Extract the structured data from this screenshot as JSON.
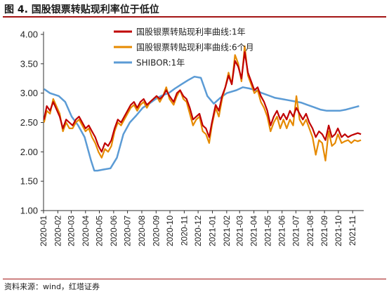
{
  "figure": {
    "title": "图 4. 国股银票转贴现利率位于低位",
    "source": "资料来源：wind，红塔证券"
  },
  "colors": {
    "series_1y": "#c00000",
    "series_6m": "#e68a00",
    "series_shibor": "#5b9bd5",
    "axis": "#333333",
    "accent": "#a31515"
  },
  "chart_data": {
    "type": "line",
    "title": "图 4. 国股银票转贴现利率位于低位",
    "xlabel": "",
    "ylabel": "",
    "ylim": [
      1.0,
      4.0
    ],
    "yticks": [
      "1.00",
      "1.50",
      "2.00",
      "2.50",
      "3.00",
      "3.50",
      "4.00"
    ],
    "xticks": [
      "2020-01",
      "2020-02",
      "2020-03",
      "2020-04",
      "2020-05",
      "2020-06",
      "2020-07",
      "2020-08",
      "2020-09",
      "2020-10",
      "2020-11",
      "2020-12",
      "2021-01",
      "2021-02",
      "2021-03",
      "2021-04",
      "2021-05",
      "2021-06",
      "2021-07",
      "2021-08",
      "2021-09",
      "2021-10",
      "2021-11"
    ],
    "grid": false,
    "legend_position": "top-right",
    "series": [
      {
        "name": "国股银票转贴现利率曲线:1年",
        "color": "#c00000",
        "x": [
          "2020-01-02",
          "2020-01-08",
          "2020-01-15",
          "2020-01-22",
          "2020-02-05",
          "2020-02-12",
          "2020-02-19",
          "2020-02-26",
          "2020-03-04",
          "2020-03-11",
          "2020-03-18",
          "2020-03-25",
          "2020-04-01",
          "2020-04-08",
          "2020-04-15",
          "2020-04-22",
          "2020-04-29",
          "2020-05-06",
          "2020-05-13",
          "2020-05-20",
          "2020-05-27",
          "2020-06-03",
          "2020-06-10",
          "2020-06-17",
          "2020-06-24",
          "2020-07-01",
          "2020-07-08",
          "2020-07-15",
          "2020-07-22",
          "2020-07-29",
          "2020-08-05",
          "2020-08-12",
          "2020-08-19",
          "2020-08-26",
          "2020-09-02",
          "2020-09-09",
          "2020-09-16",
          "2020-09-23",
          "2020-09-30",
          "2020-10-09",
          "2020-10-16",
          "2020-10-23",
          "2020-10-30",
          "2020-11-06",
          "2020-11-13",
          "2020-11-20",
          "2020-11-27",
          "2020-12-04",
          "2020-12-11",
          "2020-12-18",
          "2020-12-25",
          "2020-12-31",
          "2021-01-08",
          "2021-01-15",
          "2021-01-22",
          "2021-01-29",
          "2021-02-05",
          "2021-02-12",
          "2021-02-19",
          "2021-02-26",
          "2021-03-05",
          "2021-03-12",
          "2021-03-19",
          "2021-03-26",
          "2021-04-02",
          "2021-04-09",
          "2021-04-16",
          "2021-04-23",
          "2021-04-30",
          "2021-05-07",
          "2021-05-14",
          "2021-05-21",
          "2021-05-28",
          "2021-06-04",
          "2021-06-11",
          "2021-06-18",
          "2021-06-25",
          "2021-07-02",
          "2021-07-09",
          "2021-07-16",
          "2021-07-23",
          "2021-07-30",
          "2021-08-06",
          "2021-08-13",
          "2021-08-20",
          "2021-08-27",
          "2021-09-03",
          "2021-09-10",
          "2021-09-17",
          "2021-09-24",
          "2021-09-30",
          "2021-10-08",
          "2021-10-15",
          "2021-10-22",
          "2021-10-29",
          "2021-11-05",
          "2021-11-12",
          "2021-11-19"
        ],
        "y": [
          2.55,
          2.78,
          2.7,
          2.85,
          2.6,
          2.4,
          2.55,
          2.5,
          2.45,
          2.55,
          2.6,
          2.5,
          2.4,
          2.45,
          2.35,
          2.25,
          2.1,
          2.0,
          2.15,
          2.1,
          2.2,
          2.4,
          2.55,
          2.5,
          2.6,
          2.7,
          2.8,
          2.85,
          2.75,
          2.85,
          2.9,
          2.8,
          2.85,
          2.9,
          2.95,
          2.9,
          2.95,
          3.05,
          2.95,
          2.85,
          3.0,
          3.05,
          2.95,
          2.9,
          2.75,
          2.55,
          2.6,
          2.65,
          2.45,
          2.4,
          2.25,
          2.5,
          2.8,
          2.7,
          2.95,
          3.1,
          3.3,
          3.15,
          3.55,
          3.45,
          3.25,
          3.7,
          3.35,
          3.2,
          3.05,
          3.1,
          2.95,
          2.85,
          2.7,
          2.45,
          2.6,
          2.7,
          2.55,
          2.65,
          2.55,
          2.7,
          2.6,
          2.75,
          2.65,
          2.55,
          2.65,
          2.5,
          2.4,
          2.25,
          2.35,
          2.3,
          2.2,
          2.45,
          2.25,
          2.3,
          2.4,
          2.25,
          2.3,
          2.25,
          2.28,
          2.3,
          2.32,
          2.3
        ]
      },
      {
        "name": "国股银票转贴现利率曲线:6个月",
        "color": "#e68a00",
        "x": [
          "2020-01-02",
          "2020-01-08",
          "2020-01-15",
          "2020-01-22",
          "2020-02-05",
          "2020-02-12",
          "2020-02-19",
          "2020-02-26",
          "2020-03-04",
          "2020-03-11",
          "2020-03-18",
          "2020-03-25",
          "2020-04-01",
          "2020-04-08",
          "2020-04-15",
          "2020-04-22",
          "2020-04-29",
          "2020-05-06",
          "2020-05-13",
          "2020-05-20",
          "2020-05-27",
          "2020-06-03",
          "2020-06-10",
          "2020-06-17",
          "2020-06-24",
          "2020-07-01",
          "2020-07-08",
          "2020-07-15",
          "2020-07-22",
          "2020-07-29",
          "2020-08-05",
          "2020-08-12",
          "2020-08-19",
          "2020-08-26",
          "2020-09-02",
          "2020-09-09",
          "2020-09-16",
          "2020-09-23",
          "2020-09-30",
          "2020-10-09",
          "2020-10-16",
          "2020-10-23",
          "2020-10-30",
          "2020-11-06",
          "2020-11-13",
          "2020-11-20",
          "2020-11-27",
          "2020-12-04",
          "2020-12-11",
          "2020-12-18",
          "2020-12-25",
          "2020-12-31",
          "2021-01-08",
          "2021-01-15",
          "2021-01-22",
          "2021-01-29",
          "2021-02-05",
          "2021-02-12",
          "2021-02-19",
          "2021-02-26",
          "2021-03-05",
          "2021-03-12",
          "2021-03-19",
          "2021-03-26",
          "2021-04-02",
          "2021-04-09",
          "2021-04-16",
          "2021-04-23",
          "2021-04-30",
          "2021-05-07",
          "2021-05-14",
          "2021-05-21",
          "2021-05-28",
          "2021-06-04",
          "2021-06-11",
          "2021-06-18",
          "2021-06-25",
          "2021-07-02",
          "2021-07-09",
          "2021-07-16",
          "2021-07-23",
          "2021-07-30",
          "2021-08-06",
          "2021-08-13",
          "2021-08-20",
          "2021-08-27",
          "2021-09-03",
          "2021-09-10",
          "2021-09-17",
          "2021-09-24",
          "2021-09-30",
          "2021-10-08",
          "2021-10-15",
          "2021-10-22",
          "2021-10-29",
          "2021-11-05",
          "2021-11-12",
          "2021-11-19"
        ],
        "y": [
          2.5,
          2.7,
          2.65,
          2.9,
          2.65,
          2.35,
          2.5,
          2.4,
          2.4,
          2.5,
          2.55,
          2.45,
          2.35,
          2.4,
          2.25,
          2.15,
          2.0,
          1.9,
          2.05,
          2.0,
          2.1,
          2.35,
          2.5,
          2.45,
          2.55,
          2.65,
          2.75,
          2.8,
          2.7,
          2.8,
          2.85,
          2.75,
          2.85,
          2.9,
          2.95,
          2.85,
          2.95,
          3.1,
          2.9,
          2.8,
          2.95,
          3.05,
          2.9,
          2.85,
          2.65,
          2.45,
          2.55,
          2.6,
          2.35,
          2.3,
          2.15,
          2.45,
          2.75,
          2.6,
          2.9,
          3.1,
          3.35,
          3.15,
          3.65,
          3.5,
          3.2,
          3.8,
          3.3,
          3.15,
          3.0,
          3.05,
          2.85,
          2.75,
          2.6,
          2.35,
          2.5,
          2.6,
          2.4,
          2.55,
          2.4,
          2.55,
          2.45,
          2.95,
          2.55,
          2.45,
          2.55,
          2.4,
          2.25,
          1.95,
          2.2,
          2.15,
          1.85,
          2.35,
          2.1,
          2.15,
          2.3,
          2.15,
          2.18,
          2.2,
          2.15,
          2.2,
          2.18,
          2.2
        ]
      },
      {
        "name": "SHIBOR:1年",
        "color": "#5b9bd5",
        "x": [
          "2020-01-02",
          "2020-01-15",
          "2020-02-03",
          "2020-02-17",
          "2020-03-02",
          "2020-03-16",
          "2020-03-30",
          "2020-04-13",
          "2020-04-20",
          "2020-04-27",
          "2020-05-11",
          "2020-05-25",
          "2020-06-08",
          "2020-06-22",
          "2020-07-06",
          "2020-07-20",
          "2020-08-03",
          "2020-08-17",
          "2020-08-31",
          "2020-09-14",
          "2020-09-28",
          "2020-10-12",
          "2020-10-26",
          "2020-11-09",
          "2020-11-23",
          "2020-12-07",
          "2020-12-21",
          "2021-01-04",
          "2021-01-18",
          "2021-02-01",
          "2021-02-22",
          "2021-03-08",
          "2021-03-22",
          "2021-04-05",
          "2021-04-19",
          "2021-05-03",
          "2021-05-17",
          "2021-05-31",
          "2021-06-14",
          "2021-06-28",
          "2021-07-12",
          "2021-07-26",
          "2021-08-09",
          "2021-08-23",
          "2021-09-06",
          "2021-09-20",
          "2021-10-04",
          "2021-10-18",
          "2021-11-01",
          "2021-11-15"
        ],
        "y": [
          3.07,
          3.0,
          2.95,
          2.85,
          2.6,
          2.45,
          2.25,
          1.85,
          1.68,
          1.68,
          1.7,
          1.72,
          1.9,
          2.3,
          2.5,
          2.62,
          2.75,
          2.82,
          2.9,
          2.96,
          3.0,
          3.08,
          3.15,
          3.22,
          3.28,
          3.26,
          2.95,
          2.82,
          2.92,
          3.0,
          3.05,
          3.1,
          3.08,
          3.05,
          3.0,
          2.96,
          2.92,
          2.9,
          2.88,
          2.86,
          2.84,
          2.8,
          2.76,
          2.72,
          2.7,
          2.7,
          2.7,
          2.72,
          2.75,
          2.78
        ]
      }
    ]
  }
}
